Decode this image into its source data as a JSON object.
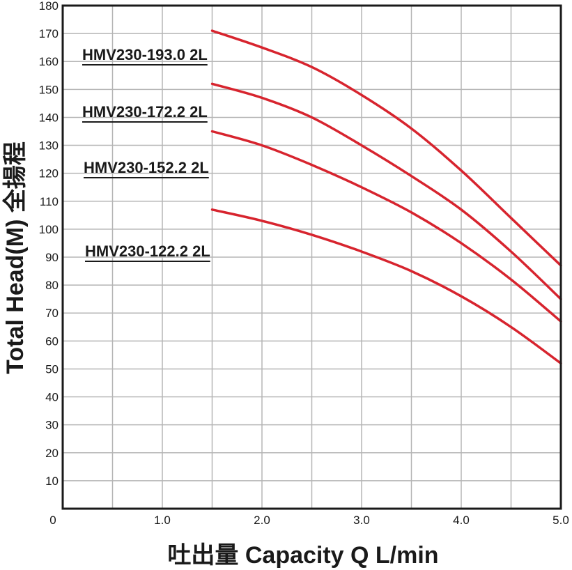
{
  "chart_data": {
    "type": "line",
    "xlabel": "吐出量 Capacity Q L/min",
    "ylabel": "Total Head(M) 全揚程",
    "xlim": [
      0,
      5.0
    ],
    "ylim": [
      0,
      180
    ],
    "x_ticks": [
      "0",
      "1.0",
      "2.0",
      "3.0",
      "4.0",
      "5.0"
    ],
    "y_ticks": [
      "10",
      "20",
      "30",
      "40",
      "50",
      "60",
      "70",
      "80",
      "90",
      "100",
      "110",
      "120",
      "130",
      "140",
      "150",
      "160",
      "170",
      "180"
    ],
    "grid": true,
    "colors": {
      "line": "#d7242e",
      "grid": "#b5b5b5",
      "frame": "#1a1a1a"
    },
    "series": [
      {
        "name": "HMV230-193.0 2L",
        "x": [
          1.5,
          2.0,
          2.5,
          3.0,
          3.5,
          4.0,
          4.5,
          5.0
        ],
        "values": [
          171,
          165,
          158,
          148,
          136,
          121,
          104,
          87
        ]
      },
      {
        "name": "HMV230-172.2 2L",
        "x": [
          1.5,
          2.0,
          2.5,
          3.0,
          3.5,
          4.0,
          4.5,
          5.0
        ],
        "values": [
          152,
          147,
          140,
          130,
          119,
          107,
          92,
          75
        ]
      },
      {
        "name": "HMV230-152.2 2L",
        "x": [
          1.5,
          2.0,
          2.5,
          3.0,
          3.5,
          4.0,
          4.5,
          5.0
        ],
        "values": [
          135,
          130,
          123,
          115,
          106,
          95,
          82,
          67
        ]
      },
      {
        "name": "HMV230-122.2 2L",
        "x": [
          1.5,
          2.0,
          2.5,
          3.0,
          3.5,
          4.0,
          4.5,
          5.0
        ],
        "values": [
          107,
          103,
          98,
          92,
          85,
          76,
          65,
          52
        ]
      }
    ]
  }
}
